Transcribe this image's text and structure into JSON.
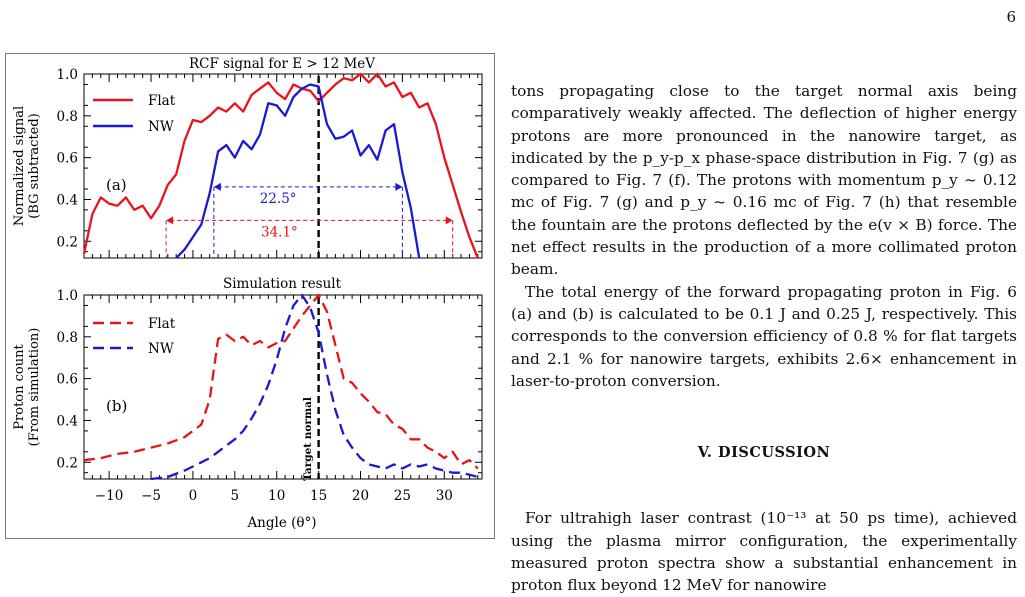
{
  "page_number": "6",
  "figure": {
    "panel_a": {
      "title": "RCF signal for E > 12 MeV",
      "ylabel_line1": "Normalized signal",
      "ylabel_line2": "(BG subtracted)",
      "panel_label": "(a)",
      "yticks": [
        "1.0",
        "0.8",
        "0.6",
        "0.4",
        "0.2"
      ],
      "legend": [
        "Flat",
        "NW"
      ],
      "width_nw": "22.5°",
      "width_flat": "34.1°"
    },
    "panel_b": {
      "title": "Simulation result",
      "ylabel_line1": "Proton count",
      "ylabel_line2": "(From simulation)",
      "panel_label": "(b)",
      "yticks": [
        "1.0",
        "0.8",
        "0.6",
        "0.4",
        "0.2"
      ],
      "legend": [
        "Flat",
        "NW"
      ],
      "annotation": "Target normal"
    },
    "xticks": [
      "−10",
      "−5",
      "0",
      "5",
      "10",
      "15",
      "20",
      "25",
      "30"
    ],
    "xlabel": "Angle (θ°)",
    "colors": {
      "flat": "#e8141c",
      "nw": "#1a1ad0",
      "normal_line": "#000000"
    }
  },
  "chart_data": [
    {
      "type": "line",
      "title": "RCF signal for E > 12 MeV",
      "xlabel": "Angle (θ°)",
      "ylabel": "Normalized signal (BG subtracted)",
      "xlim": [
        -13,
        34.5
      ],
      "ylim": [
        0.12,
        1.0
      ],
      "series": [
        {
          "name": "Flat",
          "x": [
            -13,
            -12,
            -11,
            -10,
            -9,
            -8,
            -7,
            -6,
            -5,
            -4,
            -3,
            -2,
            -1,
            0,
            1,
            2,
            3,
            4,
            5,
            6,
            7,
            8,
            9,
            10,
            11,
            12,
            13,
            14,
            15,
            16,
            17,
            18,
            19,
            20,
            21,
            22,
            23,
            24,
            25,
            26,
            27,
            28,
            29,
            30,
            31,
            32,
            33,
            34
          ],
          "y": [
            0.14,
            0.33,
            0.41,
            0.38,
            0.37,
            0.41,
            0.35,
            0.37,
            0.31,
            0.37,
            0.47,
            0.52,
            0.68,
            0.78,
            0.77,
            0.8,
            0.84,
            0.82,
            0.86,
            0.82,
            0.9,
            0.93,
            0.96,
            0.91,
            0.88,
            0.95,
            0.93,
            0.92,
            0.87,
            0.91,
            0.95,
            0.98,
            0.97,
            1.0,
            0.96,
            1.0,
            0.94,
            0.96,
            0.89,
            0.91,
            0.84,
            0.86,
            0.76,
            0.6,
            0.47,
            0.34,
            0.22,
            0.12
          ]
        },
        {
          "name": "NW",
          "x": [
            -2,
            -1,
            0,
            1,
            2,
            3,
            4,
            5,
            6,
            7,
            8,
            9,
            10,
            11,
            12,
            13,
            14,
            15,
            16,
            17,
            18,
            19,
            20,
            21,
            22,
            23,
            24,
            25,
            26,
            27
          ],
          "y": [
            0.1,
            0.16,
            0.22,
            0.28,
            0.43,
            0.63,
            0.66,
            0.6,
            0.68,
            0.64,
            0.71,
            0.86,
            0.85,
            0.8,
            0.89,
            0.93,
            0.95,
            0.94,
            0.76,
            0.69,
            0.7,
            0.73,
            0.61,
            0.66,
            0.59,
            0.73,
            0.76,
            0.53,
            0.36,
            0.1
          ]
        }
      ],
      "annotations": [
        {
          "text": "22.5°",
          "from_x": 2.5,
          "to_x": 25,
          "y": 0.46
        },
        {
          "text": "34.1°",
          "from_x": -3.2,
          "to_x": 31,
          "y": 0.3
        }
      ]
    },
    {
      "type": "line",
      "title": "Simulation result",
      "xlabel": "Angle (θ°)",
      "ylabel": "Proton count (From simulation)",
      "xlim": [
        -13,
        34.5
      ],
      "ylim": [
        0.12,
        1.0
      ],
      "series": [
        {
          "name": "Flat",
          "x": [
            -13,
            -11,
            -9,
            -7,
            -5,
            -3,
            -1,
            0,
            1,
            2,
            3,
            4,
            5,
            6,
            7,
            8,
            9,
            10,
            11,
            12,
            13,
            14,
            15,
            16,
            17,
            18,
            19,
            20,
            21,
            22,
            23,
            24,
            25,
            26,
            27,
            28,
            29,
            30,
            31,
            32,
            33,
            34
          ],
          "y": [
            0.21,
            0.22,
            0.24,
            0.25,
            0.27,
            0.29,
            0.32,
            0.35,
            0.38,
            0.5,
            0.79,
            0.81,
            0.78,
            0.8,
            0.76,
            0.78,
            0.75,
            0.77,
            0.78,
            0.84,
            0.9,
            0.95,
            1.0,
            0.92,
            0.76,
            0.6,
            0.58,
            0.53,
            0.49,
            0.44,
            0.43,
            0.38,
            0.36,
            0.31,
            0.31,
            0.27,
            0.25,
            0.22,
            0.25,
            0.19,
            0.21,
            0.17
          ]
        },
        {
          "name": "NW",
          "x": [
            -5,
            -3,
            -1,
            0,
            1,
            2,
            3,
            4,
            5,
            6,
            7,
            8,
            9,
            10,
            11,
            12,
            13,
            14,
            15,
            16,
            17,
            18,
            19,
            20,
            21,
            22,
            23,
            24,
            25,
            26,
            27,
            28,
            29,
            30,
            31,
            32,
            33,
            34
          ],
          "y": [
            0.12,
            0.13,
            0.16,
            0.18,
            0.2,
            0.22,
            0.25,
            0.28,
            0.31,
            0.35,
            0.41,
            0.48,
            0.57,
            0.69,
            0.84,
            0.95,
            1.0,
            0.94,
            0.82,
            0.62,
            0.45,
            0.33,
            0.27,
            0.22,
            0.19,
            0.18,
            0.17,
            0.19,
            0.17,
            0.19,
            0.18,
            0.19,
            0.17,
            0.16,
            0.15,
            0.15,
            0.14,
            0.13
          ]
        }
      ],
      "annotations": [
        {
          "text": "Target normal",
          "x": 15
        }
      ]
    }
  ],
  "text": {
    "para1": "tons propagating close to the target normal axis being comparatively weakly affected. The deflection of higher energy protons are more pronounced in the nanowire target, as indicated by the p_y-p_x phase-space distribution in Fig. 7 (g) as compared to Fig. 7 (f). The protons with momentum p_y ~ 0.12 mc of Fig. 7 (g) and p_y ~ 0.16 mc of Fig. 7 (h) that resemble the fountain are the protons deflected by the e(v × B) force. The net effect results in the production of a more collimated proton beam.",
    "para2": "The total energy of the forward propagating proton in Fig. 6 (a) and (b) is calculated to be 0.1 J and 0.25 J, respectively. This corresponds to the conversion efficiency of 0.8 % for flat targets and 2.1 % for nanowire targets, exhibits 2.6× enhancement in laser-to-proton conversion.",
    "section_heading": "V.   DISCUSSION",
    "para3": "For ultrahigh laser contrast (10⁻¹³ at 50 ps time), achieved using the plasma mirror configuration, the experimentally measured proton spectra show a substantial enhancement in proton flux beyond 12 MeV for nanowire"
  }
}
